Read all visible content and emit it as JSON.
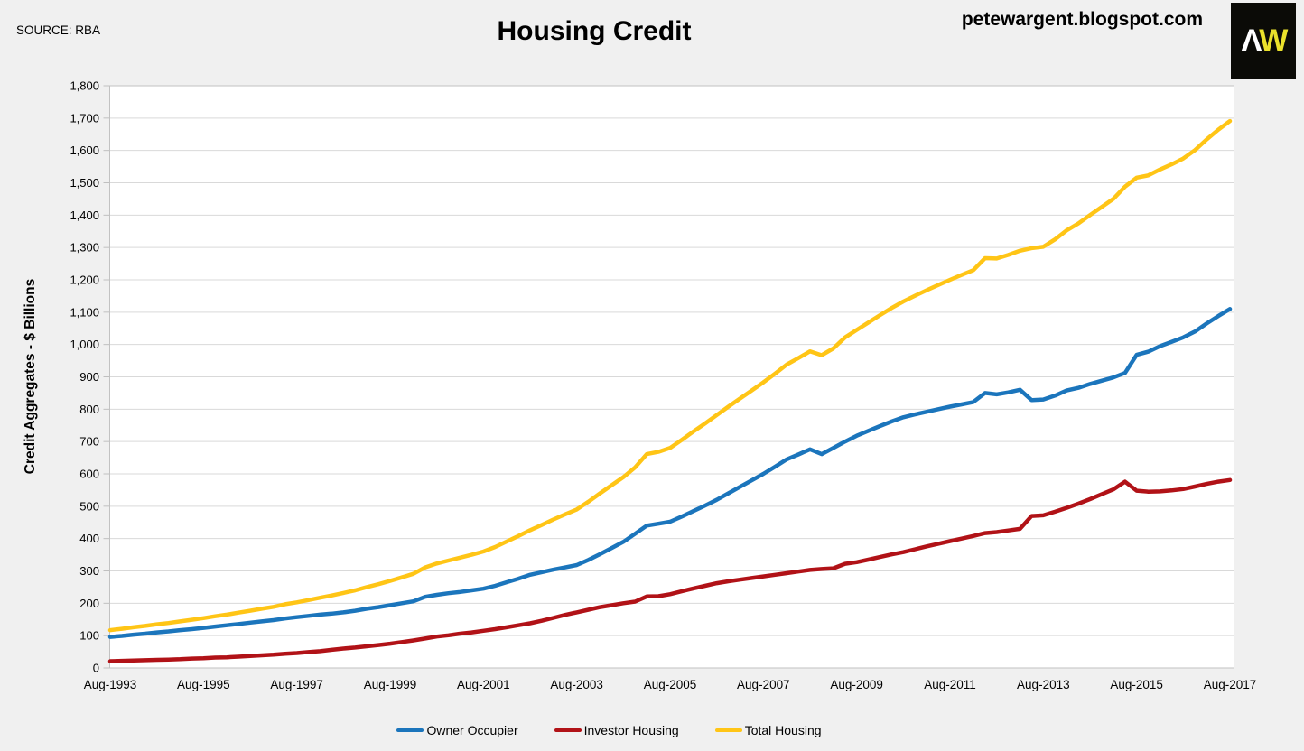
{
  "header": {
    "source": "SOURCE: RBA",
    "title": "Housing Credit",
    "site_url": "petewargent.blogspot.com",
    "logo": {
      "letter_a": "Λ",
      "letter_w": "W",
      "bg": "#0B0B07",
      "a_color": "#FFFFFF",
      "w_color": "#EAE12B"
    }
  },
  "colors": {
    "page_bg": "#F0F0F0",
    "plot_bg": "#FFFFFF",
    "grid": "#D9D9D9",
    "axis_border": "#C2C2C2",
    "tick": "#BFBFBF",
    "text": "#000000"
  },
  "chart_data": {
    "type": "line",
    "title": "Housing Credit",
    "source": "RBA",
    "ylabel": "Credit Aggregates - $ Billions",
    "xlabel": "",
    "ylim": [
      0,
      1800
    ],
    "ytick_step": 100,
    "grid": true,
    "legend_position": "bottom",
    "x_frequency": "quarterly",
    "x_start": "Aug-1993",
    "x_end": "Aug-2017",
    "y_tick_labels": [
      "0",
      "100",
      "200",
      "300",
      "400",
      "500",
      "600",
      "700",
      "800",
      "900",
      "1,000",
      "1,100",
      "1,200",
      "1,300",
      "1,400",
      "1,500",
      "1,600",
      "1,700",
      "1,800"
    ],
    "x_tick_labels": [
      "Aug-1993",
      "Aug-1995",
      "Aug-1997",
      "Aug-1999",
      "Aug-2001",
      "Aug-2003",
      "Aug-2005",
      "Aug-2007",
      "Aug-2009",
      "Aug-2011",
      "Aug-2013",
      "Aug-2015",
      "Aug-2017"
    ],
    "x_tick_indices": [
      0,
      8,
      16,
      24,
      32,
      40,
      48,
      56,
      64,
      72,
      80,
      88,
      96
    ],
    "series": [
      {
        "name": "Owner Occupier",
        "color": "#1B75BC",
        "values": [
          96,
          99,
          103,
          106,
          110,
          113,
          117,
          120,
          124,
          128,
          132,
          136,
          140,
          144,
          148,
          153,
          157,
          161,
          165,
          168,
          172,
          177,
          183,
          188,
          194,
          200,
          206,
          220,
          226,
          231,
          235,
          240,
          245,
          254,
          265,
          276,
          288,
          296,
          304,
          311,
          318,
          334,
          352,
          371,
          390,
          415,
          440,
          446,
          452,
          468,
          485,
          502,
          520,
          540,
          560,
          580,
          600,
          622,
          645,
          660,
          676,
          661,
          680,
          700,
          718,
          733,
          748,
          762,
          775,
          784,
          792,
          800,
          808,
          815,
          822,
          850,
          846,
          852,
          860,
          828,
          830,
          842,
          858,
          866,
          878,
          888,
          898,
          912,
          968,
          978,
          995,
          1008,
          1022,
          1040,
          1065,
          1088,
          1110
        ]
      },
      {
        "name": "Investor Housing",
        "color": "#B11217",
        "values": [
          21,
          22,
          23,
          24,
          25,
          26,
          27,
          29,
          30,
          32,
          33,
          35,
          37,
          39,
          41,
          44,
          46,
          49,
          52,
          56,
          60,
          63,
          67,
          71,
          75,
          80,
          85,
          91,
          97,
          101,
          106,
          110,
          115,
          120,
          126,
          132,
          138,
          146,
          155,
          164,
          172,
          180,
          188,
          194,
          200,
          205,
          221,
          222,
          228,
          237,
          246,
          254,
          262,
          268,
          273,
          278,
          283,
          288,
          293,
          298,
          303,
          306,
          308,
          322,
          327,
          335,
          343,
          351,
          358,
          367,
          376,
          384,
          392,
          400,
          408,
          417,
          420,
          425,
          430,
          470,
          472,
          483,
          495,
          508,
          522,
          537,
          552,
          576,
          548,
          545,
          546,
          549,
          553,
          561,
          569,
          576,
          581
        ]
      },
      {
        "name": "Total Housing",
        "color": "#FFC516",
        "values": [
          117,
          121,
          126,
          130,
          135,
          139,
          144,
          149,
          154,
          160,
          165,
          171,
          177,
          183,
          189,
          197,
          203,
          210,
          217,
          224,
          232,
          240,
          250,
          259,
          269,
          280,
          291,
          311,
          323,
          332,
          341,
          350,
          360,
          374,
          391,
          408,
          426,
          442,
          459,
          475,
          490,
          514,
          540,
          565,
          590,
          620,
          661,
          668,
          680,
          705,
          731,
          756,
          782,
          808,
          833,
          858,
          883,
          910,
          938,
          958,
          979,
          967,
          988,
          1022,
          1045,
          1068,
          1091,
          1113,
          1133,
          1151,
          1168,
          1184,
          1200,
          1215,
          1230,
          1267,
          1266,
          1277,
          1290,
          1298,
          1302,
          1325,
          1353,
          1374,
          1400,
          1425,
          1450,
          1488,
          1516,
          1523,
          1541,
          1557,
          1575,
          1601,
          1634,
          1664,
          1691
        ]
      }
    ]
  }
}
